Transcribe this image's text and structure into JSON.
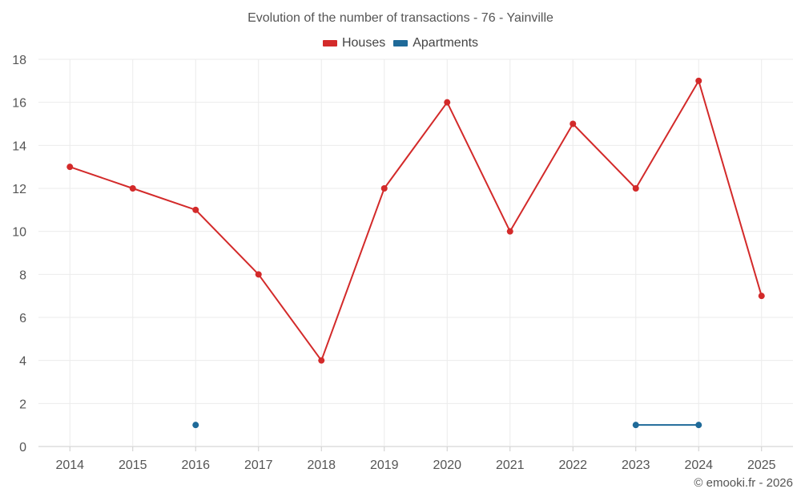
{
  "chart_data": {
    "type": "line",
    "title": "Evolution of the number of transactions - 76 - Yainville",
    "categories": [
      "2014",
      "2015",
      "2016",
      "2017",
      "2018",
      "2019",
      "2020",
      "2021",
      "2022",
      "2023",
      "2024",
      "2025"
    ],
    "series": [
      {
        "name": "Houses",
        "color": "#d32a2a",
        "values": [
          13,
          12,
          11,
          8,
          4,
          12,
          16,
          10,
          15,
          12,
          17,
          7
        ]
      },
      {
        "name": "Apartments",
        "color": "#1f6a99",
        "values": [
          null,
          null,
          1,
          null,
          null,
          null,
          null,
          null,
          null,
          1,
          1,
          null
        ]
      }
    ],
    "ylim": [
      0,
      18
    ],
    "yticks": [
      0,
      2,
      4,
      6,
      8,
      10,
      12,
      14,
      16,
      18
    ],
    "grid": true,
    "legend": "top-center",
    "xlabel": "",
    "ylabel": ""
  },
  "credit": "© emooki.fr - 2026"
}
